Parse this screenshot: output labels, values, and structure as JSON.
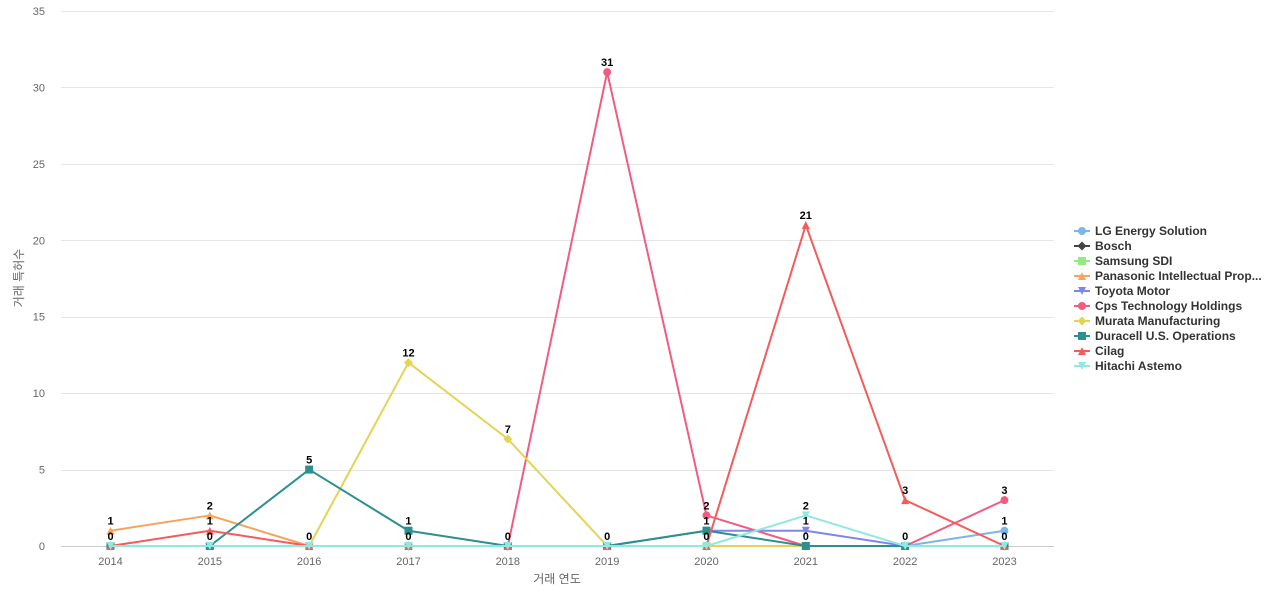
{
  "chart_data": {
    "type": "line",
    "title": "",
    "xlabel": "거래 연도",
    "ylabel": "거래 특허수",
    "x": [
      "2014",
      "2015",
      "2016",
      "2017",
      "2018",
      "2019",
      "2020",
      "2021",
      "2022",
      "2023"
    ],
    "ylim": [
      0,
      35
    ],
    "yticks": [
      0,
      5,
      10,
      15,
      20,
      25,
      30,
      35
    ],
    "grid": true,
    "legend_position": "right",
    "series": [
      {
        "name": "LG Energy Solution",
        "color": "#7cb5ec",
        "marker": "circle",
        "values": [
          0,
          0,
          0,
          0,
          0,
          0,
          0,
          0,
          0,
          1
        ]
      },
      {
        "name": "Bosch",
        "color": "#434348",
        "marker": "diamond",
        "values": [
          0,
          0,
          0,
          0,
          0,
          0,
          0,
          0,
          0,
          0
        ]
      },
      {
        "name": "Samsung SDI",
        "color": "#90ed7d",
        "marker": "square",
        "values": [
          0,
          0,
          0,
          0,
          0,
          0,
          0,
          0,
          0,
          0
        ]
      },
      {
        "name": "Panasonic Intellectual Prop...",
        "color": "#f7a35c",
        "marker": "triangle",
        "values": [
          1,
          2,
          0,
          0,
          0,
          0,
          0,
          0,
          0,
          0
        ]
      },
      {
        "name": "Toyota Motor",
        "color": "#8085e9",
        "marker": "triangle-down",
        "values": [
          0,
          0,
          0,
          0,
          0,
          0,
          1,
          1,
          0,
          0
        ]
      },
      {
        "name": "Cps Technology Holdings",
        "color": "#f15c80",
        "marker": "circle",
        "values": [
          0,
          0,
          0,
          0,
          0,
          31,
          2,
          0,
          0,
          3
        ]
      },
      {
        "name": "Murata Manufacturing",
        "color": "#e4d354",
        "marker": "diamond",
        "values": [
          0,
          0,
          0,
          12,
          7,
          0,
          0,
          0,
          0,
          0
        ]
      },
      {
        "name": "Duracell U.S. Operations",
        "color": "#2b908f",
        "marker": "square",
        "values": [
          0,
          0,
          5,
          1,
          0,
          0,
          1,
          0,
          0,
          0
        ]
      },
      {
        "name": "Cilag",
        "color": "#f45b5b",
        "marker": "triangle",
        "values": [
          0,
          1,
          0,
          0,
          0,
          0,
          0,
          21,
          3,
          0
        ]
      },
      {
        "name": "Hitachi Astemo",
        "color": "#91e8e1",
        "marker": "triangle-down",
        "values": [
          0,
          0,
          0,
          0,
          0,
          0,
          0,
          2,
          0,
          0
        ]
      }
    ],
    "data_labels": [
      {
        "x": "2014",
        "values": [
          1,
          0
        ]
      },
      {
        "x": "2015",
        "values": [
          2,
          1,
          0
        ]
      },
      {
        "x": "2016",
        "values": [
          5,
          0
        ]
      },
      {
        "x": "2017",
        "values": [
          12,
          1,
          0
        ]
      },
      {
        "x": "2018",
        "values": [
          7,
          0
        ]
      },
      {
        "x": "2019",
        "values": [
          31,
          0
        ]
      },
      {
        "x": "2020",
        "values": [
          2,
          1,
          0
        ]
      },
      {
        "x": "2021",
        "values": [
          21,
          2,
          1,
          0
        ]
      },
      {
        "x": "2022",
        "values": [
          3,
          0
        ]
      },
      {
        "x": "2023",
        "values": [
          3,
          1,
          0
        ]
      }
    ]
  }
}
